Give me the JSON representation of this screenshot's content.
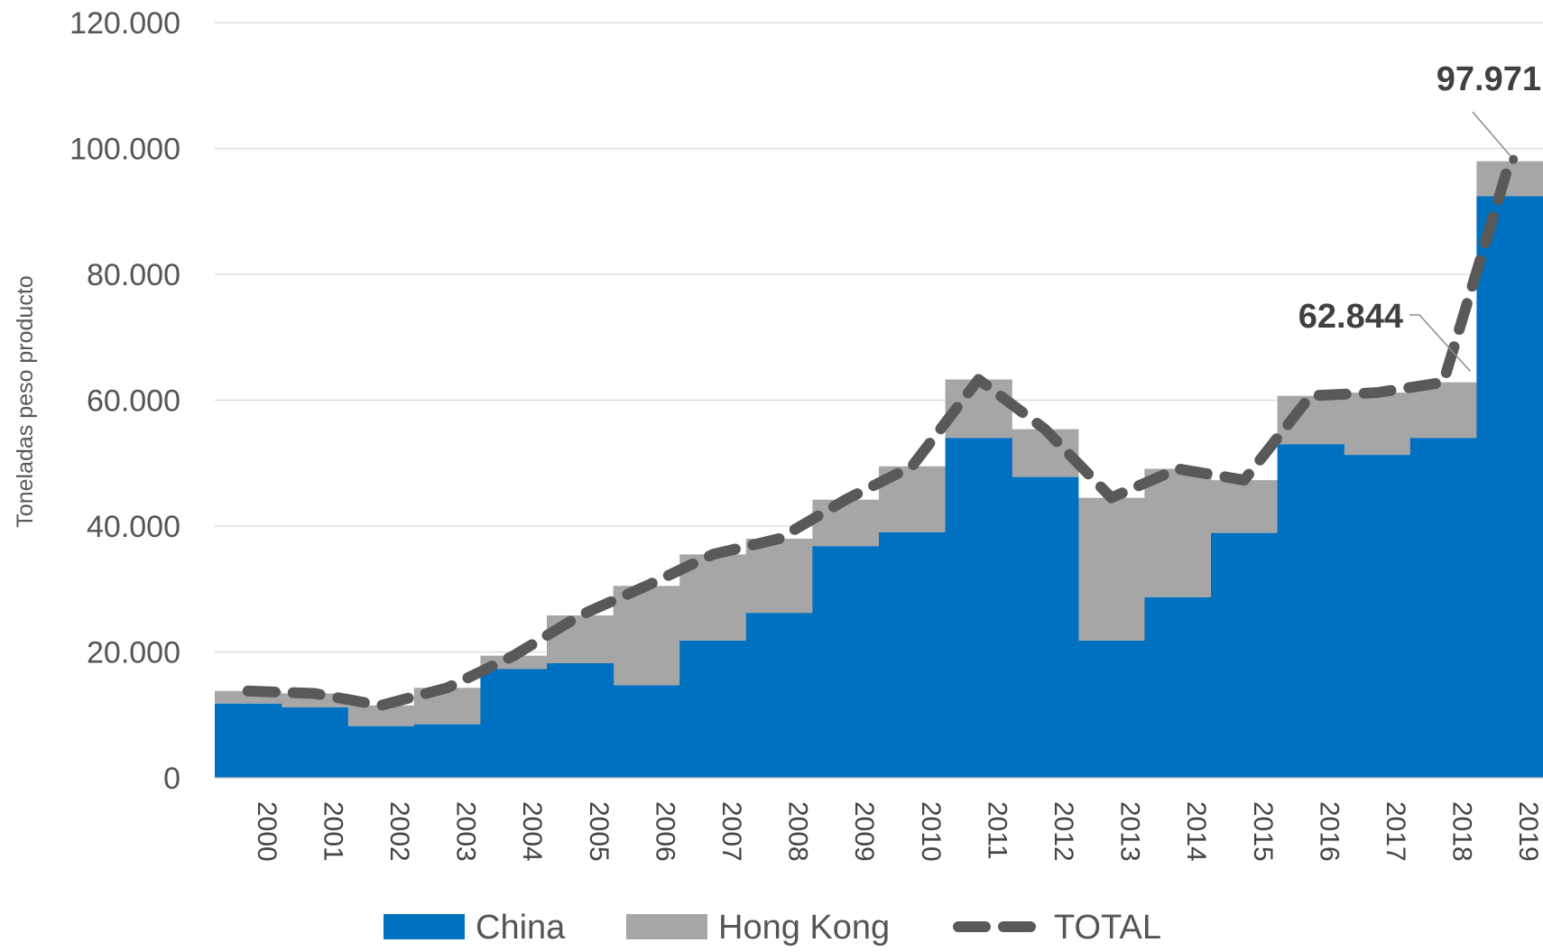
{
  "chart_data": {
    "type": "area",
    "x": [
      "2000",
      "2001",
      "2002",
      "2003",
      "2004",
      "2005",
      "2006",
      "2007",
      "2008",
      "2009",
      "2010",
      "2011",
      "2012",
      "2013",
      "2014",
      "2015",
      "2016",
      "2017",
      "2018",
      "2019"
    ],
    "series": [
      {
        "name": "China",
        "kind": "stacked-step-area",
        "color": "#0070C0",
        "values": [
          11800,
          11200,
          8200,
          8500,
          17300,
          18200,
          14700,
          21800,
          26200,
          36800,
          39000,
          54000,
          47800,
          21800,
          28700,
          38900,
          53000,
          51300,
          54000,
          92400
        ]
      },
      {
        "name": "Hong Kong",
        "kind": "stacked-step-area",
        "color": "#A6A6A6",
        "values": [
          2000,
          2200,
          3300,
          5800,
          2100,
          7600,
          15800,
          13700,
          11800,
          7400,
          10500,
          9300,
          7600,
          22700,
          20400,
          8400,
          7700,
          9900,
          8844,
          5571
        ]
      },
      {
        "name": "TOTAL",
        "kind": "dashed-line",
        "color": "#595959",
        "values": [
          13800,
          13400,
          11500,
          14300,
          19400,
          25800,
          30500,
          35500,
          38000,
          44200,
          49500,
          63300,
          55400,
          44500,
          49100,
          47300,
          60700,
          61200,
          62844,
          97971
        ]
      }
    ],
    "data_labels": [
      {
        "series": "TOTAL",
        "x": "2018",
        "text": "62.844"
      },
      {
        "series": "TOTAL",
        "x": "2019",
        "text": "97.971"
      }
    ],
    "ylabel": "Toneladas peso producto",
    "xlabel": "",
    "title": "",
    "ylim": [
      0,
      120000
    ],
    "yticks": [
      0,
      20000,
      40000,
      60000,
      80000,
      100000,
      120000
    ],
    "ytick_labels": [
      "0",
      "20.000",
      "40.000",
      "60.000",
      "80.000",
      "100.000",
      "120.000"
    ],
    "grid": "horizontal",
    "legend_position": "bottom",
    "legend": [
      "China",
      "Hong Kong",
      "TOTAL"
    ]
  }
}
